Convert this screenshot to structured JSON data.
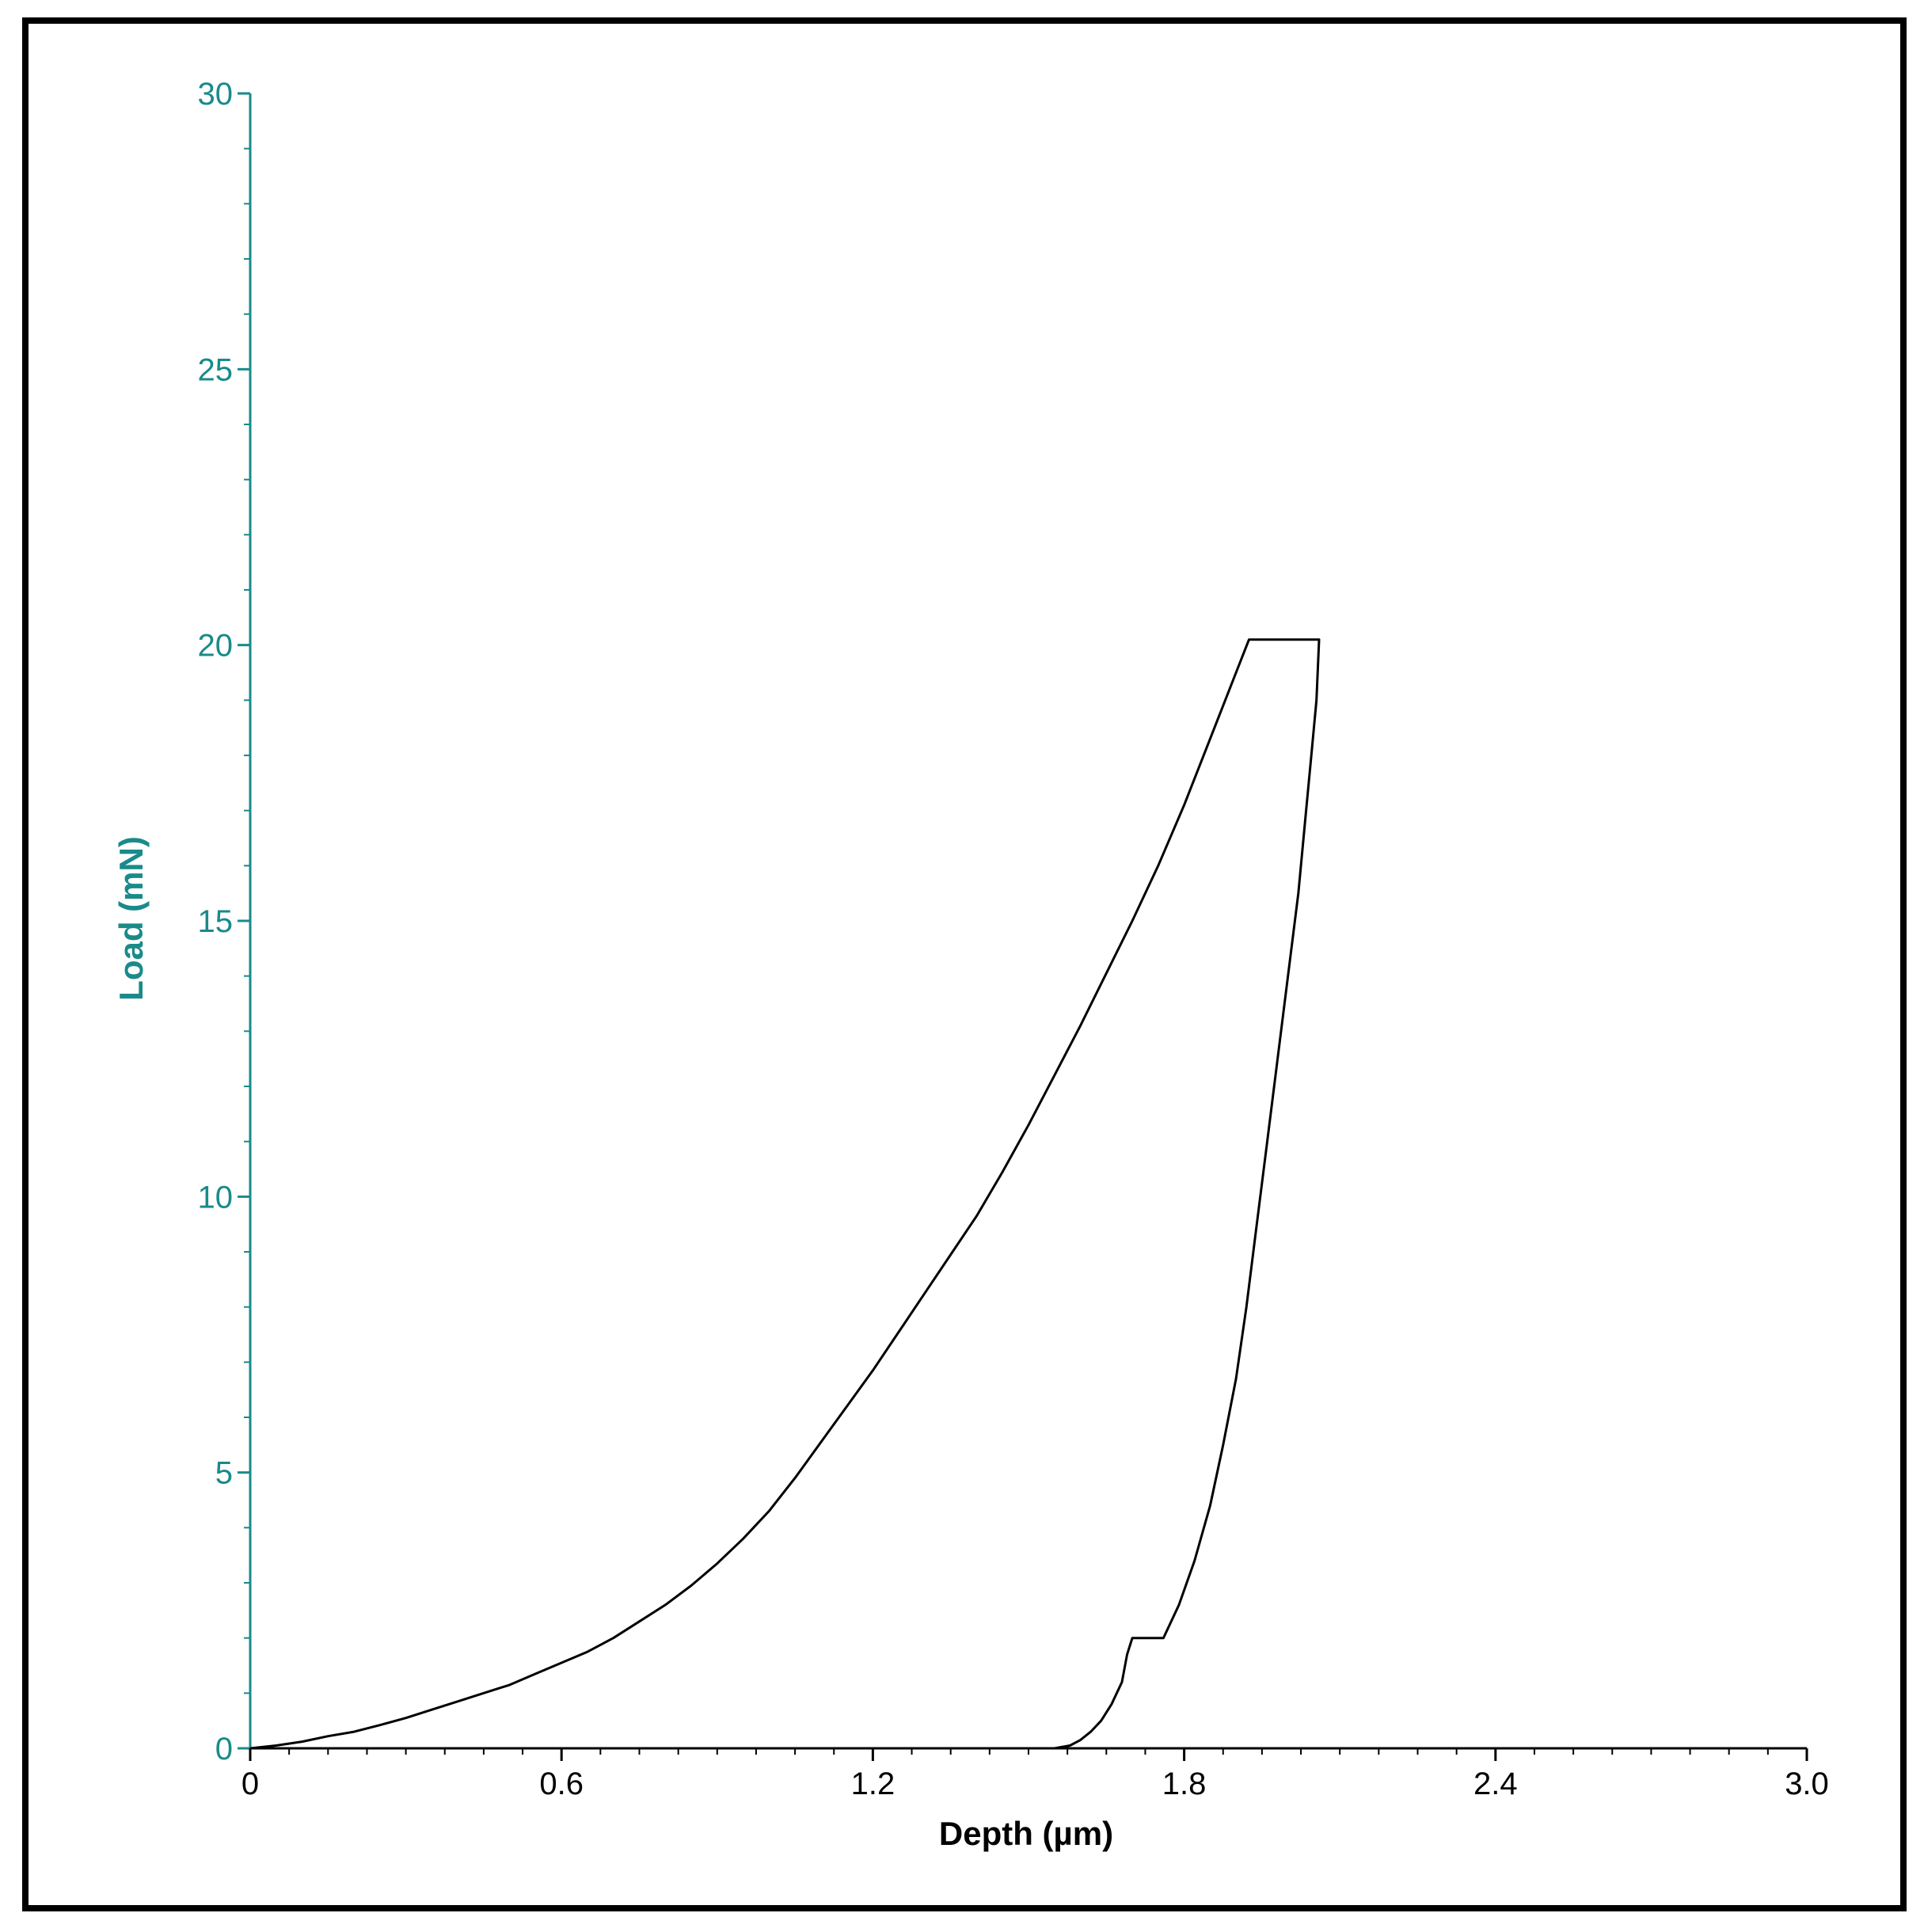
{
  "colors": {
    "frame": "#000000",
    "background": "#ffffff",
    "y_axis": "#1a8a8a",
    "x_axis": "#000000",
    "curve": "#000000"
  },
  "chart_data": {
    "type": "line",
    "title": "",
    "xlabel": "Depth (µm)",
    "ylabel": "Load (mN)",
    "xlim": [
      0,
      3.0
    ],
    "ylim": [
      0,
      30
    ],
    "x_ticks": [
      0,
      0.6,
      1.2,
      1.8,
      2.4,
      3.0
    ],
    "x_tick_labels": [
      "0",
      "0.6",
      "1.2",
      "1.8",
      "2.4",
      "3.0"
    ],
    "y_ticks": [
      0,
      5,
      10,
      15,
      20,
      25,
      30
    ],
    "y_tick_labels": [
      "0",
      "5",
      "10",
      "15",
      "20",
      "25",
      "30"
    ],
    "x_minor_step": 0.075,
    "y_minor_step": 1,
    "grid": false,
    "legend": "none",
    "series": [
      {
        "points": [
          [
            0.0,
            0.0
          ],
          [
            0.05,
            0.05
          ],
          [
            0.1,
            0.12
          ],
          [
            0.15,
            0.22
          ],
          [
            0.2,
            0.3
          ],
          [
            0.25,
            0.42
          ],
          [
            0.3,
            0.55
          ],
          [
            0.35,
            0.7
          ],
          [
            0.4,
            0.85
          ],
          [
            0.45,
            1.0
          ],
          [
            0.5,
            1.15
          ],
          [
            0.55,
            1.35
          ],
          [
            0.6,
            1.55
          ],
          [
            0.65,
            1.75
          ],
          [
            0.7,
            2.0
          ],
          [
            0.75,
            2.3
          ],
          [
            0.8,
            2.6
          ],
          [
            0.85,
            2.95
          ],
          [
            0.9,
            3.35
          ],
          [
            0.95,
            3.8
          ],
          [
            1.0,
            4.3
          ],
          [
            1.05,
            4.9
          ],
          [
            1.1,
            5.55
          ],
          [
            1.15,
            6.2
          ],
          [
            1.2,
            6.85
          ],
          [
            1.25,
            7.55
          ],
          [
            1.3,
            8.25
          ],
          [
            1.35,
            8.95
          ],
          [
            1.4,
            9.65
          ],
          [
            1.45,
            10.45
          ],
          [
            1.5,
            11.3
          ],
          [
            1.55,
            12.2
          ],
          [
            1.6,
            13.1
          ],
          [
            1.65,
            14.05
          ],
          [
            1.7,
            15.0
          ],
          [
            1.75,
            16.0
          ],
          [
            1.8,
            17.1
          ],
          [
            1.85,
            18.3
          ],
          [
            1.9,
            19.5
          ],
          [
            1.925,
            20.1
          ],
          [
            1.96,
            20.1
          ],
          [
            2.0,
            20.1
          ],
          [
            2.06,
            20.1
          ],
          [
            2.055,
            19.0
          ],
          [
            2.045,
            18.0
          ],
          [
            2.035,
            17.0
          ],
          [
            2.02,
            15.5
          ],
          [
            2.0,
            14.0
          ],
          [
            1.98,
            12.5
          ],
          [
            1.96,
            11.0
          ],
          [
            1.94,
            9.5
          ],
          [
            1.92,
            8.0
          ],
          [
            1.9,
            6.7
          ],
          [
            1.875,
            5.5
          ],
          [
            1.85,
            4.4
          ],
          [
            1.82,
            3.4
          ],
          [
            1.79,
            2.6
          ],
          [
            1.76,
            2.0
          ],
          [
            1.73,
            2.0
          ],
          [
            1.7,
            2.0
          ],
          [
            1.69,
            1.7
          ],
          [
            1.68,
            1.2
          ],
          [
            1.66,
            0.8
          ],
          [
            1.64,
            0.5
          ],
          [
            1.62,
            0.3
          ],
          [
            1.6,
            0.15
          ],
          [
            1.58,
            0.05
          ],
          [
            1.55,
            0.0
          ],
          [
            1.45,
            0.0
          ],
          [
            1.32,
            0.0
          ]
        ]
      }
    ]
  }
}
